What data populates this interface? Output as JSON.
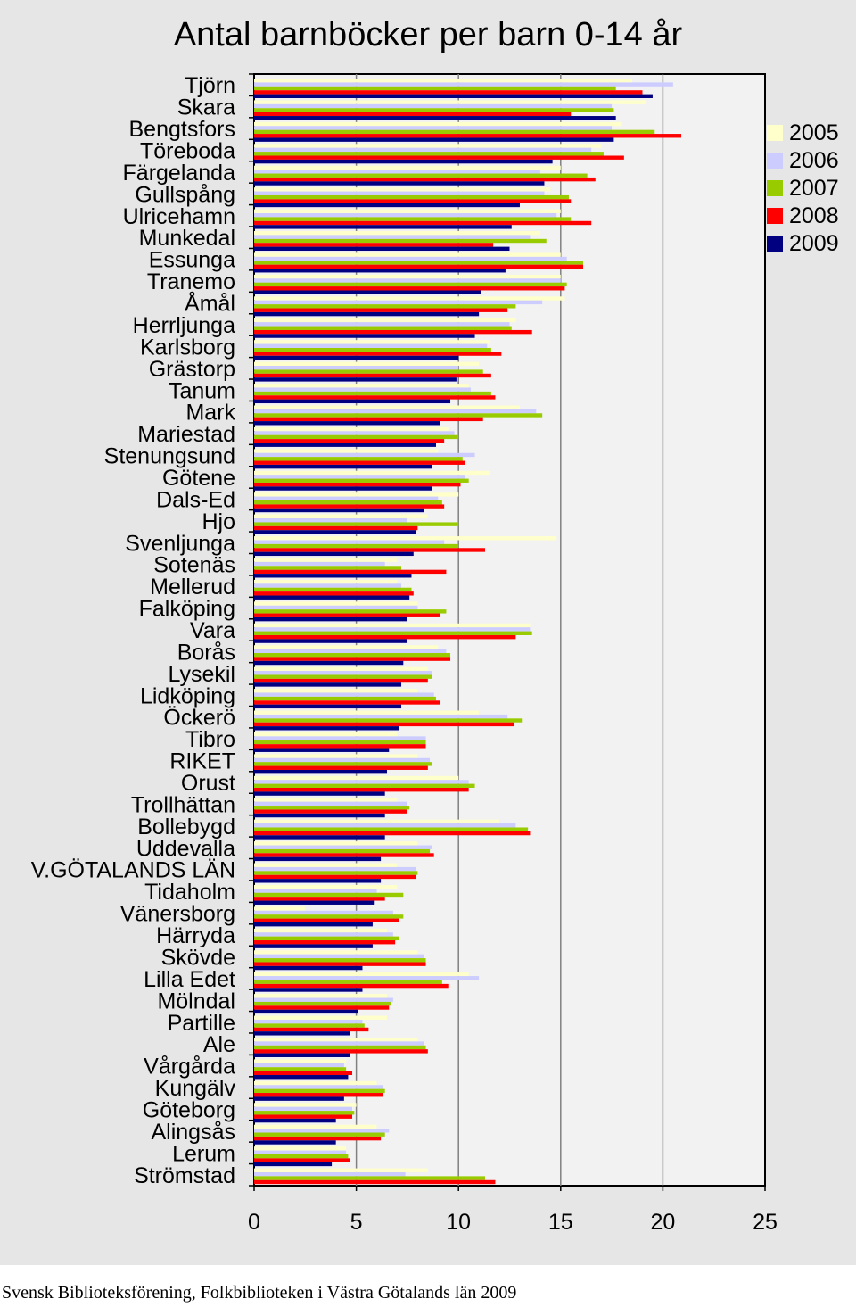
{
  "source": "Svensk Biblioteksförening, Folkbiblioteken i Västra Götalands län 2009",
  "chart_data": {
    "type": "bar",
    "orientation": "horizontal",
    "title": "Antal barnböcker per barn 0-14 år",
    "xlabel": "",
    "ylabel": "",
    "xlim": [
      0,
      25
    ],
    "xticks": [
      "0",
      "5",
      "10",
      "15",
      "20",
      "25"
    ],
    "grid": "vertical",
    "legend_position": "right",
    "categories": [
      "Tjörn",
      "Skara",
      "Bengtsfors",
      "Töreboda",
      "Färgelanda",
      "Gullspång",
      "Ulricehamn",
      "Munkedal",
      "Essunga",
      "Tranemo",
      "Åmål",
      "Herrljunga",
      "Karlsborg",
      "Grästorp",
      "Tanum",
      "Mark",
      "Mariestad",
      "Stenungsund",
      "Götene",
      "Dals-Ed",
      "Hjo",
      "Svenljunga",
      "Sotenäs",
      "Mellerud",
      "Falköping",
      "Vara",
      "Borås",
      "Lysekil",
      "Lidköping",
      "Öckerö",
      "Tibro",
      "RIKET",
      "Orust",
      "Trollhättan",
      "Bollebygd",
      "Uddevalla",
      "V.GÖTALANDS LÄN",
      "Tidaholm",
      "Vänersborg",
      "Härryda",
      "Skövde",
      "Lilla Edet",
      "Mölndal",
      "Partille",
      "Ale",
      "Vårgårda",
      "Kungälv",
      "Göteborg",
      "Alingsås",
      "Lerum",
      "Strömstad"
    ],
    "series": [
      {
        "name": "2005",
        "color": "#ffffcc",
        "values": [
          18.5,
          19.2,
          18.0,
          17.0,
          15.0,
          14.5,
          15.0,
          14.0,
          15.0,
          15.0,
          15.2,
          12.8,
          11.5,
          11.0,
          10.5,
          13.0,
          9.5,
          9.0,
          11.5,
          10.0,
          8.5,
          14.8,
          7.0,
          7.0,
          8.0,
          13.5,
          9.0,
          8.5,
          8.0,
          11.0,
          7.0,
          8.0,
          10.0,
          7.0,
          12.0,
          8.0,
          7.0,
          7.0,
          2.5,
          6.5,
          8.0,
          10.5,
          6.5,
          6.5,
          8.0,
          4.5,
          6.0,
          5.0,
          6.0,
          4.5,
          8.5
        ]
      },
      {
        "name": "2006",
        "color": "#ccccff",
        "values": [
          20.5,
          17.5,
          17.5,
          16.5,
          14.0,
          14.2,
          14.8,
          13.5,
          15.3,
          15.0,
          14.1,
          12.5,
          11.4,
          10.0,
          10.6,
          13.8,
          9.8,
          10.8,
          10.3,
          9.0,
          7.5,
          9.3,
          6.4,
          7.2,
          8.0,
          13.5,
          9.4,
          8.7,
          8.8,
          12.4,
          8.4,
          8.6,
          10.5,
          7.5,
          12.8,
          8.7,
          7.9,
          6.0,
          6.8,
          6.8,
          8.3,
          11.0,
          6.8,
          5.3,
          8.3,
          4.4,
          6.3,
          4.8,
          6.6,
          4.5,
          7.4
        ]
      },
      {
        "name": "2007",
        "color": "#99cc00",
        "values": [
          17.7,
          17.6,
          19.6,
          17.1,
          16.3,
          15.4,
          15.5,
          14.3,
          16.1,
          15.3,
          12.8,
          12.6,
          11.6,
          11.2,
          11.6,
          14.1,
          10.0,
          10.2,
          10.5,
          9.2,
          10.0,
          10.0,
          7.2,
          7.7,
          9.4,
          13.6,
          9.6,
          8.7,
          8.9,
          13.1,
          8.4,
          8.7,
          10.8,
          7.6,
          13.4,
          8.6,
          8.0,
          7.3,
          7.3,
          7.1,
          8.4,
          9.2,
          6.7,
          5.4,
          8.4,
          4.5,
          6.4,
          4.9,
          6.4,
          4.6,
          11.3
        ]
      },
      {
        "name": "2008",
        "color": "#ff0000",
        "values": [
          19.0,
          15.5,
          20.9,
          18.1,
          16.7,
          15.5,
          16.5,
          11.7,
          16.1,
          15.2,
          12.4,
          13.6,
          12.1,
          11.6,
          11.8,
          11.2,
          9.3,
          10.3,
          10.1,
          9.3,
          8.0,
          11.3,
          9.4,
          7.8,
          9.1,
          12.8,
          9.6,
          8.5,
          9.1,
          12.7,
          8.4,
          8.5,
          10.5,
          7.5,
          13.5,
          8.8,
          7.9,
          6.4,
          7.1,
          6.9,
          8.4,
          9.5,
          6.6,
          5.6,
          8.5,
          4.8,
          6.3,
          4.8,
          6.2,
          4.7,
          11.8
        ]
      },
      {
        "name": "2009",
        "color": "#000080",
        "values": [
          19.5,
          17.7,
          17.6,
          14.6,
          14.2,
          13.0,
          12.6,
          12.5,
          12.3,
          11.1,
          11.0,
          10.8,
          10.0,
          9.9,
          9.6,
          9.1,
          8.9,
          8.7,
          8.7,
          8.3,
          7.9,
          7.8,
          7.7,
          7.6,
          7.5,
          7.5,
          7.3,
          7.2,
          7.2,
          7.1,
          6.6,
          6.5,
          6.4,
          6.4,
          6.4,
          6.2,
          6.2,
          5.9,
          5.8,
          5.8,
          5.3,
          5.3,
          5.1,
          4.7,
          4.7,
          4.6,
          4.4,
          4.0,
          4.0,
          3.8,
          null
        ]
      }
    ]
  }
}
